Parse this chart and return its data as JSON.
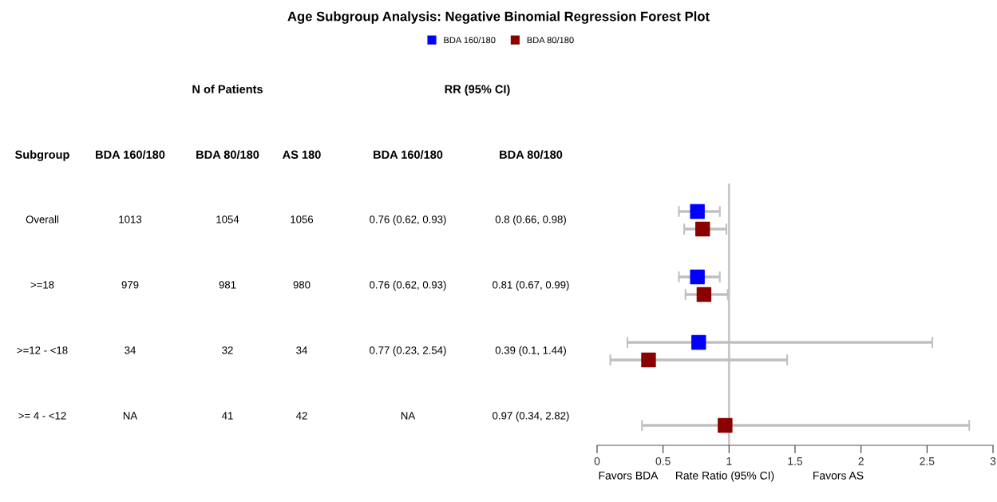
{
  "chart_data": [
    {
      "type": "scatter",
      "title": "Age Subgroup Analysis: Negative Binomial Regression Forest Plot",
      "xlabel": "Rate Ratio (95% CI)",
      "annotations": [
        "Favors BDA",
        "Favors AS"
      ],
      "categories": [
        null,
        null,
        null,
        null
      ],
      "series": [
        {
          "name": "BDA 160/180",
          "color": "#0000ff",
          "values": [
            0.76,
            0.76,
            0.77,
            null
          ],
          "errors": [
            [
              0.62,
              0.93
            ],
            [
              0.62,
              0.93
            ],
            [
              0.23,
              2.54
            ],
            null
          ]
        },
        {
          "name": "BDA 80/180",
          "color": "#8b0000",
          "values": [
            0.8,
            0.81,
            0.39,
            0.97
          ],
          "errors": [
            [
              0.66,
              0.98
            ],
            [
              0.67,
              0.99
            ],
            [
              0.1,
              1.44
            ],
            [
              0.34,
              2.82
            ]
          ]
        }
      ],
      "xlim": [
        0,
        3
      ],
      "xticks": [
        0,
        0.5,
        1,
        1.5,
        2,
        2.5,
        3
      ],
      "ref_lines": [
        {
          "axis": "x",
          "value": 1,
          "color": "#c8c8c8"
        }
      ],
      "orientation": "horizontal",
      "marker": "square",
      "legend": "top",
      "grid": false,
      "tick_labels": "x"
    },
    {
      "type": "other",
      "annotations": [
        "N of Patients",
        "RR (95% CI)",
        "Subgroup",
        "BDA 160/180",
        "BDA 80/180",
        "AS 180",
        "BDA 160/180",
        "BDA 80/180",
        "Overall",
        "1013",
        "1054",
        "1056",
        "0.76 (0.62, 0.93)",
        "0.8 (0.66, 0.98)",
        ">=18",
        "979",
        "981",
        "980",
        "0.76 (0.62, 0.93)",
        "0.81 (0.67, 0.99)",
        ">=12 - <18",
        "34",
        "32",
        "34",
        "0.77 (0.23, 2.54)",
        "0.39 (0.1, 1.44)",
        ">= 4 - <12",
        "NA",
        "41",
        "42",
        "NA",
        "0.97 (0.34, 2.82)"
      ]
    }
  ]
}
